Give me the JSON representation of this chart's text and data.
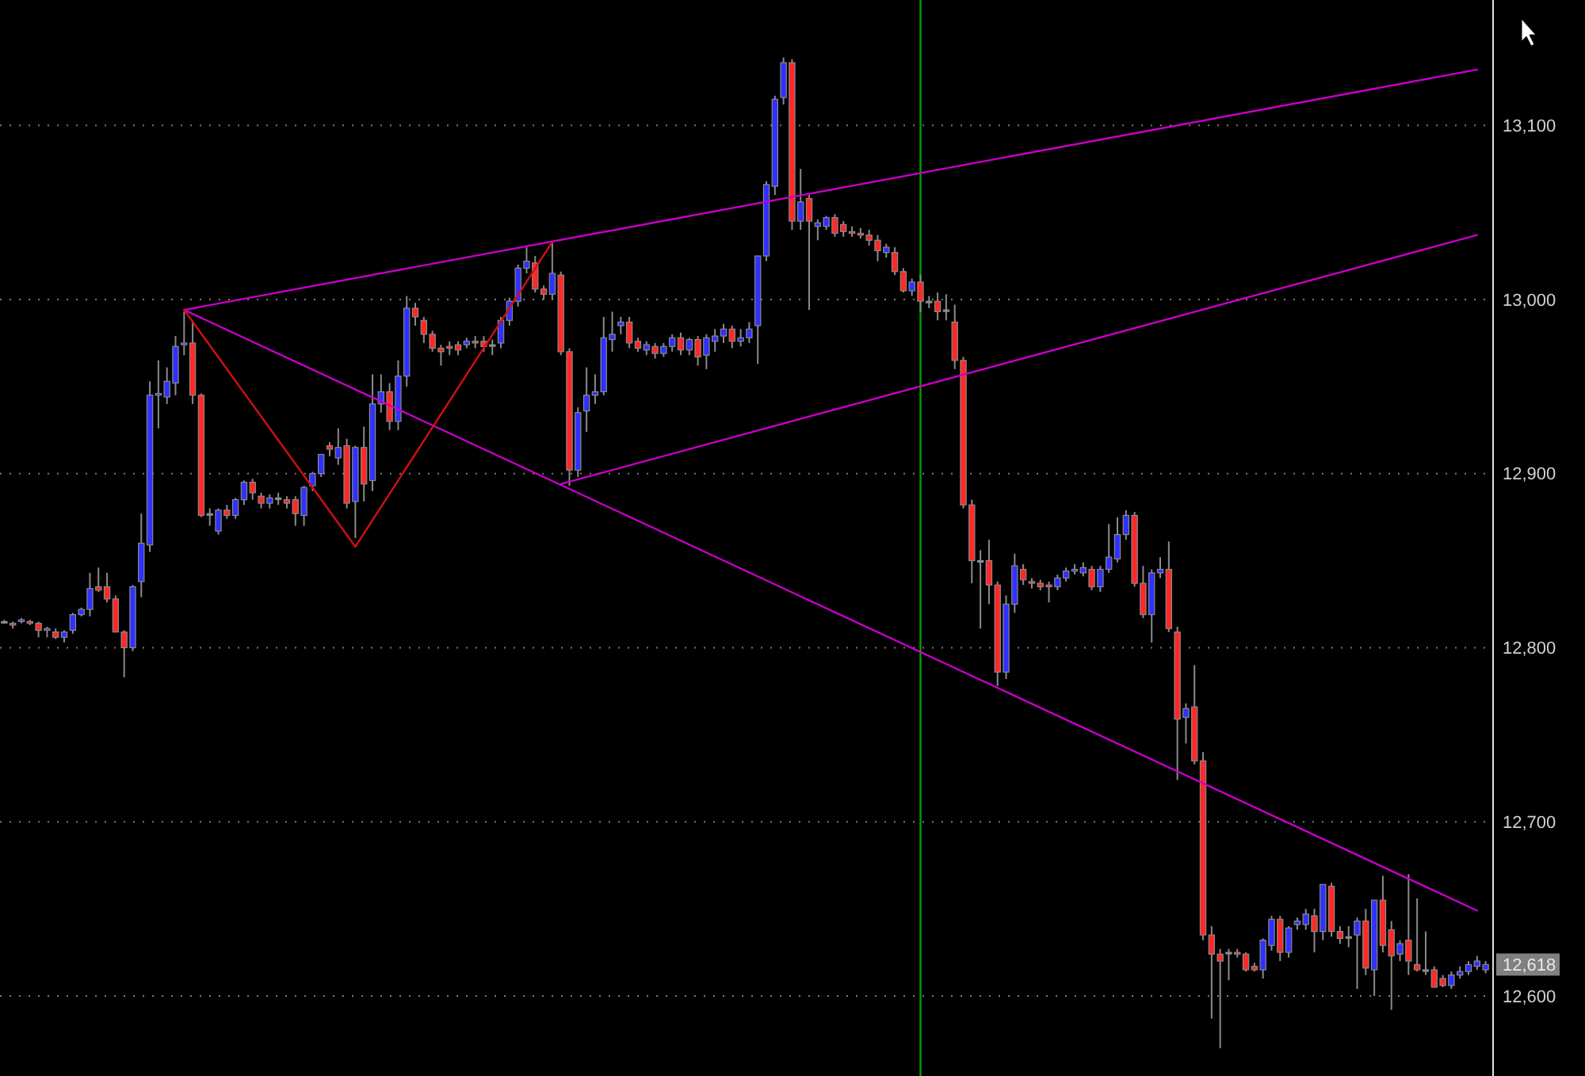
{
  "chart_data": {
    "type": "candlestick",
    "categories": [
      null,
      null,
      null,
      null,
      null,
      null,
      null,
      null,
      null,
      null,
      null,
      null,
      null,
      null,
      null,
      null,
      null,
      null,
      null,
      null,
      null,
      null,
      null,
      null,
      null,
      null,
      null,
      null,
      null,
      null,
      null,
      null,
      null,
      null,
      null,
      null,
      null,
      null,
      null,
      null,
      null,
      null,
      null,
      null,
      null,
      null,
      null,
      null,
      null,
      null,
      null,
      null,
      null,
      null,
      null,
      null,
      null,
      null,
      null,
      null,
      null,
      null,
      null,
      null,
      null,
      null,
      null,
      null,
      null,
      null,
      null,
      null,
      null,
      null,
      null,
      null,
      null,
      null,
      null,
      null,
      null,
      null,
      null,
      null,
      null,
      null,
      null,
      null,
      null,
      null,
      null,
      null,
      null,
      null,
      null,
      null,
      null,
      null,
      null,
      null,
      null,
      null,
      null,
      null,
      null,
      null,
      null,
      null,
      null,
      null,
      null,
      null,
      null,
      null,
      null,
      null,
      null,
      null,
      null,
      null,
      null,
      null,
      null,
      null,
      null,
      null,
      null,
      null,
      null,
      null,
      null,
      null,
      null,
      null,
      null,
      null,
      null,
      null,
      null,
      null,
      null,
      null,
      null,
      null,
      null,
      null,
      null,
      null,
      null,
      null,
      null,
      null,
      null,
      null,
      null,
      null,
      null,
      null,
      null,
      null,
      null,
      null,
      null,
      null,
      null,
      null,
      null,
      null,
      null,
      null,
      null,
      null,
      null,
      null
    ],
    "ylim": [
      12554,
      13172
    ],
    "yticks": [
      {
        "value": 12600,
        "label": "12,600"
      },
      {
        "value": 12700,
        "label": "12,700"
      },
      {
        "value": 12800,
        "label": "12,800"
      },
      {
        "value": 12900,
        "label": "12,900"
      },
      {
        "value": 13000,
        "label": "13,000"
      },
      {
        "value": 13100,
        "label": "13,100"
      }
    ],
    "grid": "y",
    "tick_labels": "y",
    "annotations": [
      "12,618"
    ],
    "series": [
      {
        "colors": [
          "#909090",
          "#ff2828",
          "#3030ff",
          "#ff2828",
          "#ff2828",
          "#3030ff",
          "#ff2828",
          "#3030ff",
          "#3030ff",
          "#3030ff",
          "#3030ff",
          "#ff2828",
          "#ff2828",
          "#ff2828",
          "#ff2828",
          "#3030ff",
          "#3030ff",
          "#3030ff",
          "#3030ff",
          "#3030ff",
          "#3030ff",
          "#3030ff",
          "#ff2828",
          "#ff2828",
          "#909090",
          "#3030ff",
          "#ff2828",
          "#3030ff",
          "#3030ff",
          "#ff2828",
          "#ff2828",
          "#3030ff",
          "#909090",
          "#ff2828",
          "#ff2828",
          "#3030ff",
          "#3030ff",
          "#3030ff",
          "#ff2828",
          "#3030ff",
          "#ff2828",
          "#3030ff",
          "#ff2828",
          "#3030ff",
          "#3030ff",
          "#ff2828",
          "#3030ff",
          "#3030ff",
          "#ff2828",
          "#ff2828",
          "#ff2828",
          "#ff2828",
          "#ff2828",
          "#ff2828",
          "#3030ff",
          "#ff2828",
          "#ff2828",
          "#909090",
          "#3030ff",
          "#3030ff",
          "#3030ff",
          "#3030ff",
          "#ff2828",
          "#ff2828",
          "#3030ff",
          "#ff2828",
          "#ff2828",
          "#3030ff",
          "#3030ff",
          "#3030ff",
          "#3030ff",
          "#3030ff",
          "#3030ff",
          "#ff2828",
          "#ff2828",
          "#3030ff",
          "#ff2828",
          "#3030ff",
          "#3030ff",
          "#ff2828",
          "#3030ff",
          "#ff2828",
          "#3030ff",
          "#3030ff",
          "#3030ff",
          "#ff2828",
          "#3030ff",
          "#3030ff",
          "#3030ff",
          "#3030ff",
          "#3030ff",
          "#3030ff",
          "#ff2828",
          "#3030ff",
          "#ff2828",
          "#3030ff",
          "#3030ff",
          "#ff2828",
          "#ff2828",
          "#ff2828",
          "#ff2828",
          "#ff2828",
          "#ff2828",
          "#3030ff",
          "#ff2828",
          "#ff2828",
          "#3030ff",
          "#ff2828",
          "#909090",
          "#ff2828",
          "#909090",
          "#ff2828",
          "#ff2828",
          "#ff2828",
          "#909090",
          "#ff2828",
          "#ff2828",
          "#3030ff",
          "#3030ff",
          "#ff2828",
          "#ff2828",
          "#ff2828",
          "#ff2828",
          "#3030ff",
          "#3030ff",
          "#3030ff",
          "#3030ff",
          "#ff2828",
          "#3030ff",
          "#3030ff",
          "#3030ff",
          "#3030ff",
          "#ff2828",
          "#ff2828",
          "#3030ff",
          "#3030ff",
          "#ff2828",
          "#ff2828",
          "#3030ff",
          "#ff2828",
          "#ff2828",
          "#ff2828",
          "#ff2828",
          "#909090",
          "#ff2828",
          "#ff2828",
          "#ff2828",
          "#3030ff",
          "#3030ff",
          "#ff2828",
          "#3030ff",
          "#3030ff",
          "#3030ff",
          "#ff2828",
          "#3030ff",
          "#ff2828",
          "#ff2828",
          "#909090",
          "#3030ff",
          "#ff2828",
          "#3030ff",
          "#ff2828",
          "#ff2828",
          "#3030ff",
          "#ff2828",
          "#ff2828",
          "#909090",
          "#ff2828",
          "#ff2828",
          "#3030ff",
          "#3030ff",
          "#3030ff",
          "#3030ff",
          "#3030ff"
        ],
        "ohlc": [
          [
            12815,
            12816,
            12815,
            12815
          ],
          [
            12814,
            12815,
            12811,
            12813
          ],
          [
            12815,
            12817,
            12814,
            12816
          ],
          [
            12815,
            12816,
            12813,
            12814
          ],
          [
            12814,
            12815,
            12806,
            12810
          ],
          [
            12810,
            12812,
            12806,
            12811
          ],
          [
            12809,
            12811,
            12805,
            12806
          ],
          [
            12806,
            12810,
            12803,
            12809
          ],
          [
            12810,
            12820,
            12808,
            12819
          ],
          [
            12819,
            12823,
            12818,
            12822
          ],
          [
            12822,
            12843,
            12818,
            12834
          ],
          [
            12835,
            12846,
            12832,
            12833
          ],
          [
            12835,
            12843,
            12826,
            12828
          ],
          [
            12828,
            12830,
            12809,
            12809
          ],
          [
            12809,
            12810,
            12783,
            12800
          ],
          [
            12800,
            12836,
            12798,
            12835
          ],
          [
            12838,
            12877,
            12829,
            12860
          ],
          [
            12859,
            12953,
            12855,
            12945
          ],
          [
            12945,
            12965,
            12926,
            12946
          ],
          [
            12944,
            12961,
            12940,
            12953
          ],
          [
            12952,
            12979,
            12945,
            12973
          ],
          [
            12974,
            12993,
            12968,
            12975
          ],
          [
            12975,
            12988,
            12940,
            12945
          ],
          [
            12945,
            12946,
            12875,
            12876
          ],
          [
            12877,
            12880,
            12870,
            12877
          ],
          [
            12867,
            12880,
            12865,
            12879
          ],
          [
            12879,
            12882,
            12874,
            12876
          ],
          [
            12876,
            12886,
            12874,
            12885
          ],
          [
            12885,
            12896,
            12882,
            12895
          ],
          [
            12895,
            12897,
            12885,
            12889
          ],
          [
            12887,
            12889,
            12880,
            12883
          ],
          [
            12883,
            12888,
            12880,
            12886
          ],
          [
            12886,
            12889,
            12882,
            12886
          ],
          [
            12885,
            12887,
            12880,
            12883
          ],
          [
            12885,
            12887,
            12870,
            12877
          ],
          [
            12876,
            12893,
            12870,
            12892
          ],
          [
            12893,
            12901,
            12890,
            12900
          ],
          [
            12900,
            12911,
            12898,
            12911
          ],
          [
            12916,
            12918,
            12910,
            12914
          ],
          [
            12909,
            12926,
            12905,
            12915
          ],
          [
            12916,
            12920,
            12880,
            12883
          ],
          [
            12884,
            12916,
            12863,
            12915
          ],
          [
            12915,
            12927,
            12884,
            12894
          ],
          [
            12896,
            12957,
            12890,
            12940
          ],
          [
            12940,
            12957,
            12935,
            12947
          ],
          [
            12947,
            12952,
            12925,
            12930
          ],
          [
            12930,
            12965,
            12925,
            12956
          ],
          [
            12956,
            13002,
            12950,
            12995
          ],
          [
            12995,
            12998,
            12985,
            12990
          ],
          [
            12988,
            12990,
            12975,
            12980
          ],
          [
            12980,
            12982,
            12970,
            12972
          ],
          [
            12972,
            12974,
            12962,
            12970
          ],
          [
            12973,
            12976,
            12968,
            12972
          ],
          [
            12974,
            12976,
            12968,
            12971
          ],
          [
            12974,
            12978,
            12972,
            12976
          ],
          [
            12976,
            12979,
            12972,
            12975
          ],
          [
            12976,
            12979,
            12970,
            12973
          ],
          [
            12974,
            12977,
            12968,
            12974
          ],
          [
            12975,
            12990,
            12972,
            12988
          ],
          [
            12988,
            13001,
            12985,
            12999
          ],
          [
            12999,
            13020,
            12996,
            13018
          ],
          [
            13018,
            13030,
            13015,
            13022
          ],
          [
            13021,
            13025,
            13004,
            13006
          ],
          [
            13006,
            13008,
            13000,
            13003
          ],
          [
            13003,
            13033,
            13000,
            13015
          ],
          [
            13014,
            13016,
            12968,
            12970
          ],
          [
            12970,
            12972,
            12893,
            12902
          ],
          [
            12902,
            12938,
            12898,
            12935
          ],
          [
            12936,
            12961,
            12924,
            12945
          ],
          [
            12945,
            12957,
            12940,
            12947
          ],
          [
            12947,
            12990,
            12945,
            12978
          ],
          [
            12977,
            12993,
            12970,
            12980
          ],
          [
            12985,
            12990,
            12980,
            12987
          ],
          [
            12987,
            12990,
            12972,
            12975
          ],
          [
            12976,
            12978,
            12970,
            12972
          ],
          [
            12971,
            12976,
            12968,
            12974
          ],
          [
            12973,
            12975,
            12966,
            12969
          ],
          [
            12969,
            12975,
            12967,
            12973
          ],
          [
            12973,
            12980,
            12970,
            12978
          ],
          [
            12978,
            12981,
            12968,
            12971
          ],
          [
            12971,
            12978,
            12968,
            12977
          ],
          [
            12977,
            12979,
            12962,
            12967
          ],
          [
            12968,
            12980,
            12960,
            12978
          ],
          [
            12976,
            12983,
            12970,
            12979
          ],
          [
            12979,
            12986,
            12975,
            12983
          ],
          [
            12983,
            12985,
            12972,
            12976
          ],
          [
            12976,
            12983,
            12973,
            12978
          ],
          [
            12978,
            12987,
            12975,
            12983
          ],
          [
            12985,
            13025,
            12963,
            13025
          ],
          [
            13025,
            13068,
            13022,
            13066
          ],
          [
            13065,
            13117,
            13060,
            13115
          ],
          [
            13116,
            13139,
            13112,
            13136
          ],
          [
            13136,
            13138,
            13040,
            13045
          ],
          [
            13045,
            13075,
            13040,
            13056
          ],
          [
            13058,
            13060,
            12994,
            13045
          ],
          [
            13042,
            13046,
            13034,
            13044
          ],
          [
            13042,
            13048,
            13040,
            13047
          ],
          [
            13047,
            13049,
            13036,
            13038
          ],
          [
            13043,
            13045,
            13036,
            13039
          ],
          [
            13039,
            13042,
            13036,
            13038
          ],
          [
            13038,
            13041,
            13035,
            13037
          ],
          [
            13037,
            13040,
            13031,
            13034
          ],
          [
            13034,
            13037,
            13022,
            13028
          ],
          [
            13027,
            13032,
            13024,
            13030
          ],
          [
            13027,
            13030,
            13014,
            13016
          ],
          [
            13016,
            13018,
            13004,
            13005
          ],
          [
            13005,
            13012,
            13002,
            13010
          ],
          [
            13010,
            13014,
            12993,
            12999
          ],
          [
            12999,
            13002,
            12995,
            12999
          ],
          [
            12999,
            13004,
            12988,
            12993
          ],
          [
            12994,
            13003,
            12988,
            12994
          ],
          [
            12987,
            12997,
            12960,
            12965
          ],
          [
            12965,
            12967,
            12880,
            12882
          ],
          [
            12882,
            12885,
            12837,
            12850
          ],
          [
            12850,
            12856,
            12811,
            12850
          ],
          [
            12850,
            12862,
            12825,
            12836
          ],
          [
            12836,
            12838,
            12778,
            12786
          ],
          [
            12786,
            12830,
            12782,
            12825
          ],
          [
            12825,
            12854,
            12820,
            12847
          ],
          [
            12845,
            12848,
            12836,
            12839
          ],
          [
            12838,
            12840,
            12834,
            12837
          ],
          [
            12837,
            12839,
            12833,
            12835
          ],
          [
            12836,
            12838,
            12826,
            12835
          ],
          [
            12835,
            12842,
            12833,
            12840
          ],
          [
            12840,
            12846,
            12838,
            12844
          ],
          [
            12844,
            12848,
            12842,
            12845
          ],
          [
            12843,
            12849,
            12841,
            12846
          ],
          [
            12845,
            12847,
            12833,
            12835
          ],
          [
            12835,
            12847,
            12832,
            12845
          ],
          [
            12845,
            12871,
            12843,
            12852
          ],
          [
            12851,
            12875,
            12849,
            12865
          ],
          [
            12865,
            12879,
            12862,
            12876
          ],
          [
            12876,
            12878,
            12835,
            12837
          ],
          [
            12837,
            12847,
            12817,
            12819
          ],
          [
            12819,
            12845,
            12803,
            12843
          ],
          [
            12843,
            12852,
            12840,
            12845
          ],
          [
            12845,
            12861,
            12809,
            12811
          ],
          [
            12809,
            12812,
            12724,
            12759
          ],
          [
            12760,
            12768,
            12745,
            12765
          ],
          [
            12766,
            12790,
            12733,
            12735
          ],
          [
            12735,
            12740,
            12632,
            12635
          ],
          [
            12635,
            12640,
            12587,
            12624
          ],
          [
            12624,
            12627,
            12570,
            12620
          ],
          [
            12625,
            12627,
            12609,
            12625
          ],
          [
            12625,
            12627,
            12622,
            12624
          ],
          [
            12624,
            12625,
            12614,
            12615
          ],
          [
            12617,
            12619,
            12614,
            12615
          ],
          [
            12615,
            12633,
            12610,
            12632
          ],
          [
            12629,
            12646,
            12626,
            12644
          ],
          [
            12644,
            12646,
            12620,
            12625
          ],
          [
            12625,
            12640,
            12622,
            12639
          ],
          [
            12641,
            12645,
            12638,
            12643
          ],
          [
            12641,
            12650,
            12638,
            12647
          ],
          [
            12646,
            12650,
            12625,
            12637
          ],
          [
            12637,
            12664,
            12632,
            12664
          ],
          [
            12663,
            12665,
            12634,
            12637
          ],
          [
            12637,
            12640,
            12630,
            12633
          ],
          [
            12634,
            12640,
            12628,
            12634
          ],
          [
            12635,
            12645,
            12604,
            12643
          ],
          [
            12643,
            12650,
            12612,
            12616
          ],
          [
            12615,
            12655,
            12600,
            12655
          ],
          [
            12655,
            12669,
            12625,
            12629
          ],
          [
            12638,
            12643,
            12592,
            12623
          ],
          [
            12624,
            12632,
            12620,
            12630
          ],
          [
            12632,
            12670,
            12612,
            12620
          ],
          [
            12618,
            12656,
            12614,
            12615
          ],
          [
            12615,
            12637,
            12612,
            12615
          ],
          [
            12615,
            12617,
            12605,
            12605
          ],
          [
            12610,
            12612,
            12605,
            12606
          ],
          [
            12606,
            12614,
            12604,
            12612
          ],
          [
            12612,
            12617,
            12610,
            12614
          ],
          [
            12614,
            12620,
            12612,
            12618
          ],
          [
            12617,
            12623,
            12615,
            12620
          ],
          [
            12615,
            12620,
            12613,
            12618
          ]
        ]
      },
      {
        "type": "line",
        "color": "#c800c8",
        "values": [
          null,
          null,
          null,
          null,
          null,
          null,
          null,
          null,
          null,
          null,
          null,
          null,
          null,
          null,
          null,
          null,
          null,
          null,
          null,
          null,
          null,
          12994,
          null,
          null,
          null,
          null,
          null,
          null,
          null,
          null,
          null,
          null,
          null,
          null,
          null,
          null,
          null,
          null,
          null,
          null,
          null,
          null,
          null,
          null,
          null,
          null,
          null,
          null,
          null,
          null,
          null,
          null,
          null,
          null,
          null,
          null,
          null,
          null,
          null,
          null,
          null,
          null,
          null,
          null,
          null,
          null,
          null,
          null,
          null,
          null,
          null,
          null,
          null,
          null,
          null,
          null,
          null,
          null,
          null,
          null,
          null,
          null,
          null,
          null,
          null,
          null,
          null,
          null,
          null,
          null,
          null,
          null,
          null,
          null,
          null,
          null,
          null,
          null,
          null,
          null,
          null,
          null,
          null,
          null,
          null,
          null,
          null,
          null,
          null,
          null,
          null,
          null,
          null,
          null,
          null,
          null,
          null,
          null,
          null,
          null,
          null,
          null,
          null,
          null,
          null,
          null,
          null,
          null,
          null,
          null,
          null,
          null,
          null,
          null,
          null,
          null,
          null,
          null,
          null,
          null,
          null,
          null,
          null,
          null,
          null,
          null,
          null,
          null,
          null,
          null,
          null,
          null,
          null,
          null,
          null,
          null,
          null,
          null,
          null,
          null,
          null,
          null,
          null,
          null,
          null,
          null,
          null,
          null,
          null,
          null,
          null,
          null,
          13132,
          null
        ]
      },
      {
        "type": "line",
        "color": "#c800c8",
        "values": [
          null,
          null,
          null,
          null,
          null,
          null,
          null,
          null,
          null,
          null,
          null,
          null,
          null,
          null,
          null,
          null,
          null,
          null,
          null,
          null,
          null,
          null,
          null,
          null,
          null,
          null,
          null,
          null,
          null,
          null,
          null,
          null,
          null,
          null,
          null,
          null,
          null,
          null,
          null,
          null,
          null,
          null,
          null,
          null,
          null,
          null,
          null,
          null,
          null,
          null,
          null,
          null,
          null,
          null,
          null,
          null,
          null,
          null,
          null,
          null,
          null,
          null,
          null,
          null,
          null,
          12894,
          null,
          null,
          null,
          null,
          null,
          null,
          null,
          null,
          null,
          null,
          null,
          null,
          null,
          null,
          null,
          null,
          null,
          null,
          null,
          null,
          null,
          null,
          null,
          null,
          null,
          null,
          null,
          null,
          null,
          null,
          null,
          null,
          null,
          null,
          null,
          null,
          null,
          null,
          null,
          null,
          null,
          null,
          null,
          null,
          null,
          null,
          null,
          null,
          null,
          null,
          null,
          null,
          null,
          null,
          null,
          null,
          null,
          null,
          null,
          null,
          null,
          null,
          null,
          null,
          null,
          null,
          null,
          null,
          null,
          null,
          null,
          null,
          null,
          null,
          null,
          null,
          null,
          null,
          null,
          null,
          null,
          null,
          null,
          null,
          null,
          null,
          null,
          null,
          null,
          null,
          null,
          null,
          null,
          null,
          null,
          null,
          null,
          null,
          null,
          null,
          null,
          null,
          null,
          null,
          null,
          null,
          13037,
          null
        ]
      },
      {
        "type": "line",
        "color": "#c800c8",
        "values": [
          null,
          null,
          null,
          null,
          null,
          null,
          null,
          null,
          null,
          null,
          null,
          null,
          null,
          null,
          null,
          null,
          null,
          null,
          null,
          null,
          null,
          12994,
          null,
          null,
          null,
          null,
          null,
          null,
          null,
          null,
          null,
          null,
          null,
          null,
          null,
          null,
          null,
          null,
          null,
          null,
          null,
          null,
          null,
          null,
          null,
          null,
          null,
          null,
          null,
          null,
          null,
          null,
          null,
          null,
          null,
          null,
          null,
          null,
          null,
          null,
          null,
          null,
          null,
          null,
          null,
          null,
          null,
          null,
          null,
          null,
          null,
          null,
          null,
          null,
          null,
          null,
          null,
          null,
          null,
          null,
          null,
          null,
          null,
          null,
          null,
          null,
          null,
          null,
          null,
          null,
          null,
          null,
          null,
          null,
          null,
          null,
          null,
          null,
          null,
          null,
          null,
          null,
          null,
          null,
          null,
          null,
          null,
          null,
          null,
          null,
          null,
          null,
          null,
          null,
          null,
          null,
          null,
          null,
          null,
          null,
          null,
          null,
          null,
          null,
          null,
          null,
          null,
          null,
          null,
          null,
          null,
          null,
          null,
          null,
          null,
          null,
          null,
          null,
          null,
          null,
          null,
          null,
          null,
          null,
          null,
          null,
          null,
          null,
          null,
          null,
          null,
          null,
          null,
          null,
          null,
          null,
          null,
          null,
          null,
          null,
          null,
          null,
          null,
          null,
          null,
          null,
          null,
          null,
          null,
          null,
          null,
          null,
          12649,
          null
        ]
      },
      {
        "type": "line",
        "color": "#d01010",
        "values": [
          null,
          null,
          null,
          null,
          null,
          null,
          null,
          null,
          null,
          null,
          null,
          null,
          null,
          null,
          null,
          null,
          null,
          null,
          null,
          null,
          null,
          12994,
          null,
          null,
          null,
          null,
          null,
          null,
          null,
          null,
          null,
          null,
          null,
          null,
          null,
          null,
          null,
          null,
          null,
          null,
          null,
          12858,
          null,
          null,
          null,
          null,
          null,
          null,
          null,
          null,
          null,
          null,
          null,
          null,
          null,
          null,
          null,
          null,
          null,
          null,
          null,
          null,
          null,
          null,
          13033,
          null,
          null,
          null,
          null,
          null,
          null,
          null,
          null,
          null,
          null,
          null,
          null,
          null,
          null,
          null,
          null,
          null,
          null,
          null,
          null,
          null,
          null,
          null,
          null,
          null,
          null,
          null,
          null,
          null,
          null,
          null,
          null,
          null,
          null,
          null,
          null,
          null,
          null,
          null,
          null,
          null,
          null,
          null,
          null,
          null,
          null,
          null,
          null,
          null,
          null,
          null,
          null,
          null,
          null,
          null,
          null,
          null,
          null,
          null,
          null,
          null,
          null,
          null,
          null,
          null,
          null,
          null,
          null,
          null,
          null,
          null,
          null,
          null,
          null,
          null,
          null,
          null,
          null,
          null,
          null,
          null,
          null,
          null,
          null,
          null,
          null,
          null,
          null,
          null,
          null,
          null,
          null,
          null,
          null,
          null,
          null,
          null,
          null,
          null,
          null,
          null,
          null,
          null,
          null,
          null,
          null,
          null,
          null,
          null
        ]
      }
    ]
  }
}
